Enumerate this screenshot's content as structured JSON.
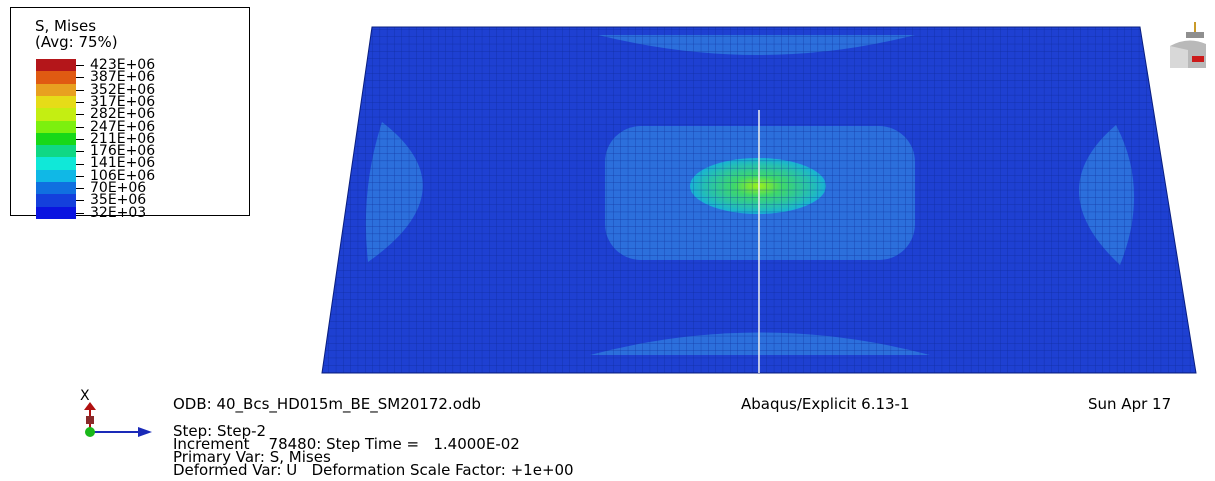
{
  "legend": {
    "title": "S, Mises",
    "subtitle": "(Avg: 75%)",
    "levels": [
      {
        "label": "423E+06",
        "color": "#b4161a"
      },
      {
        "label": "387E+06",
        "color": "#e05a12"
      },
      {
        "label": "352E+06",
        "color": "#e8a020"
      },
      {
        "label": "317E+06",
        "color": "#e6dc18"
      },
      {
        "label": "282E+06",
        "color": "#c4ee12"
      },
      {
        "label": "247E+06",
        "color": "#7cf00e"
      },
      {
        "label": "211E+06",
        "color": "#18d818"
      },
      {
        "label": "176E+06",
        "color": "#10d884"
      },
      {
        "label": "141E+06",
        "color": "#10e8d8"
      },
      {
        "label": "106E+06",
        "color": "#10b8e6"
      },
      {
        "label": "70E+06",
        "color": "#1070e0"
      },
      {
        "label": "35E+06",
        "color": "#1440dc"
      },
      {
        "label": "32E+03",
        "color": "#0a14e0"
      }
    ]
  },
  "triad": {
    "axis_label": "X"
  },
  "info": {
    "odb": "ODB: 40_Bcs_HD015m_BE_SM20172.odb",
    "solver": "Abaqus/Explicit 6.13-1",
    "date": "Sun Apr 17",
    "step": "Step: Step-2",
    "increment": "Increment    78480: Step Time =   1.4000E-02",
    "primary_var": "Primary Var: S, Mises",
    "deformed_var": "Deformed Var: U   Deformation Scale Factor: +1e+00"
  },
  "colors": {
    "mesh_base": "#1e40d2",
    "mesh_line": "#0d2a9a",
    "region_light": "#2f7fe0",
    "region_cyan": "#19b3d6",
    "hotspot": "#6fe86a"
  },
  "icons": [
    "triad-icon",
    "view-cube-icon"
  ]
}
